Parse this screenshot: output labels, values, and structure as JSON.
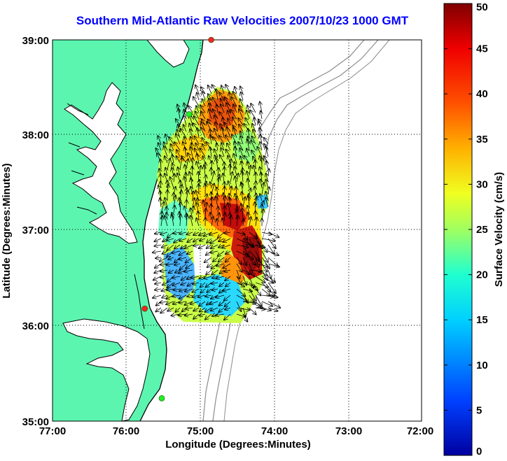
{
  "title": "Southern Mid-Atlantic Raw Velocities 2007/10/23 1000 GMT",
  "map": {
    "xlabel": "Longitude (Degrees:Minutes)",
    "ylabel": "Latitude (Degrees:Minutes)",
    "lon_range": [
      -77,
      -72
    ],
    "lat_range": [
      35,
      39
    ],
    "x_ticks": [
      "77:00",
      "76:00",
      "75:00",
      "74:00",
      "73:00",
      "72:00"
    ],
    "y_ticks": [
      "35:00",
      "36:00",
      "37:00",
      "38:00",
      "39:00"
    ],
    "land_color": "#5cf5b0",
    "coastline_color": "#000000",
    "bathymetry_color": "#8c8c8c",
    "grid": "dotted"
  },
  "colorbar": {
    "label": "Surface Velocity (cm/s)",
    "range": [
      0,
      50
    ],
    "ticks": [
      "0",
      "5",
      "10",
      "15",
      "20",
      "25",
      "30",
      "35",
      "40",
      "45",
      "50"
    ],
    "colormap": "jet"
  },
  "stations": {
    "color_active": "#ff2020",
    "color_ok": "#22ee22",
    "points": [
      {
        "lon": -74.85,
        "lat": 39.0,
        "status": "active"
      },
      {
        "lon": -75.15,
        "lat": 38.22,
        "status": "ok"
      },
      {
        "lon": -75.75,
        "lat": 36.18,
        "status": "active"
      },
      {
        "lon": -75.52,
        "lat": 35.24,
        "status": "ok"
      }
    ]
  }
}
